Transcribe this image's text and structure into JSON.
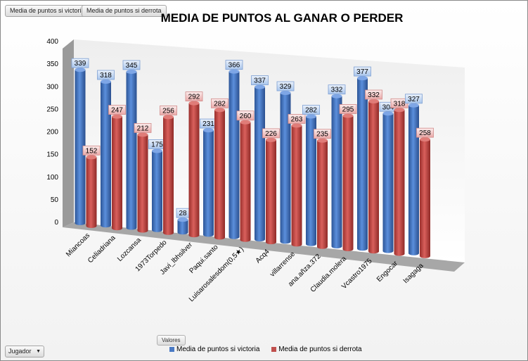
{
  "field_buttons": [
    "Media de puntos si victoria",
    "Media de puntos si derrota"
  ],
  "filter_button": {
    "label": "Jugador",
    "icon": "dropdown-arrow-icon"
  },
  "values_button": "Valores",
  "chart_data": {
    "type": "bar",
    "subtype": "3d-cylinder-clustered",
    "title": "MEDIA DE PUNTOS AL GANAR O PERDER",
    "xlabel": "",
    "ylabel": "",
    "ylim": [
      0,
      400
    ],
    "yticks": [
      0,
      50,
      100,
      150,
      200,
      250,
      300,
      350,
      400
    ],
    "grid": false,
    "legend_position": "bottom",
    "categories": [
      "Miancoas",
      "Celiadriana",
      "Lozcansa",
      "1973Torpedo",
      "Javi_lbhsilver",
      "Paqui.santo",
      "Luisarosalesdom(0,5★)",
      "Acq4",
      "villarrense",
      "ana.añza.372",
      "Claudia.molera",
      "Vcastro1975",
      "Engocar",
      "Isagaga"
    ],
    "series": [
      {
        "name": "Media de puntos si victoria",
        "color": "#4a7ac4",
        "values": [
          339,
          318,
          345,
          175,
          28,
          231,
          366,
          337,
          329,
          282,
          332,
          377,
          304,
          327
        ]
      },
      {
        "name": "Media de puntos si derrota",
        "color": "#c0504d",
        "values": [
          152,
          247,
          212,
          256,
          292,
          282,
          260,
          226,
          263,
          235,
          295,
          332,
          318,
          258
        ]
      }
    ]
  }
}
